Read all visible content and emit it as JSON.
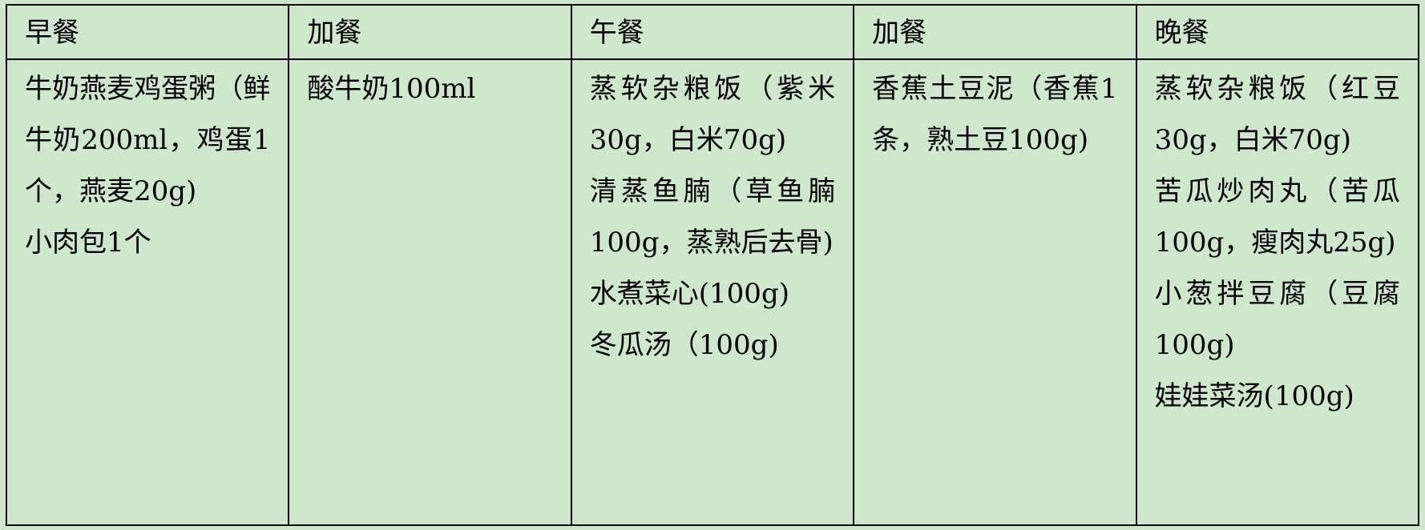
{
  "headers": [
    "早餐",
    "加餐",
    "午餐",
    "加餐",
    "晚餐"
  ],
  "cells": [
    [
      "牛奶燕麦鸡蛋粥（鲜牛奶200ml，鸡蛋1个，燕麦20g)",
      "小肉包1个"
    ],
    [
      "酸牛奶100ml"
    ],
    [
      "蒸软杂粮饭（紫米30g，白米70g)",
      "清蒸鱼腩（草鱼腩100g，蒸熟后去骨)",
      "水煮菜心(100g)",
      "冬瓜汤（100g)"
    ],
    [
      "香蕉土豆泥（香蕉1条，熟土豆100g)"
    ],
    [
      "蒸软杂粮饭（红豆30g，白米70g)",
      "苦瓜炒肉丸（苦瓜100g，瘦肉丸25g)",
      "小葱拌豆腐（豆腐100g)",
      "娃娃菜汤(100g)"
    ]
  ]
}
